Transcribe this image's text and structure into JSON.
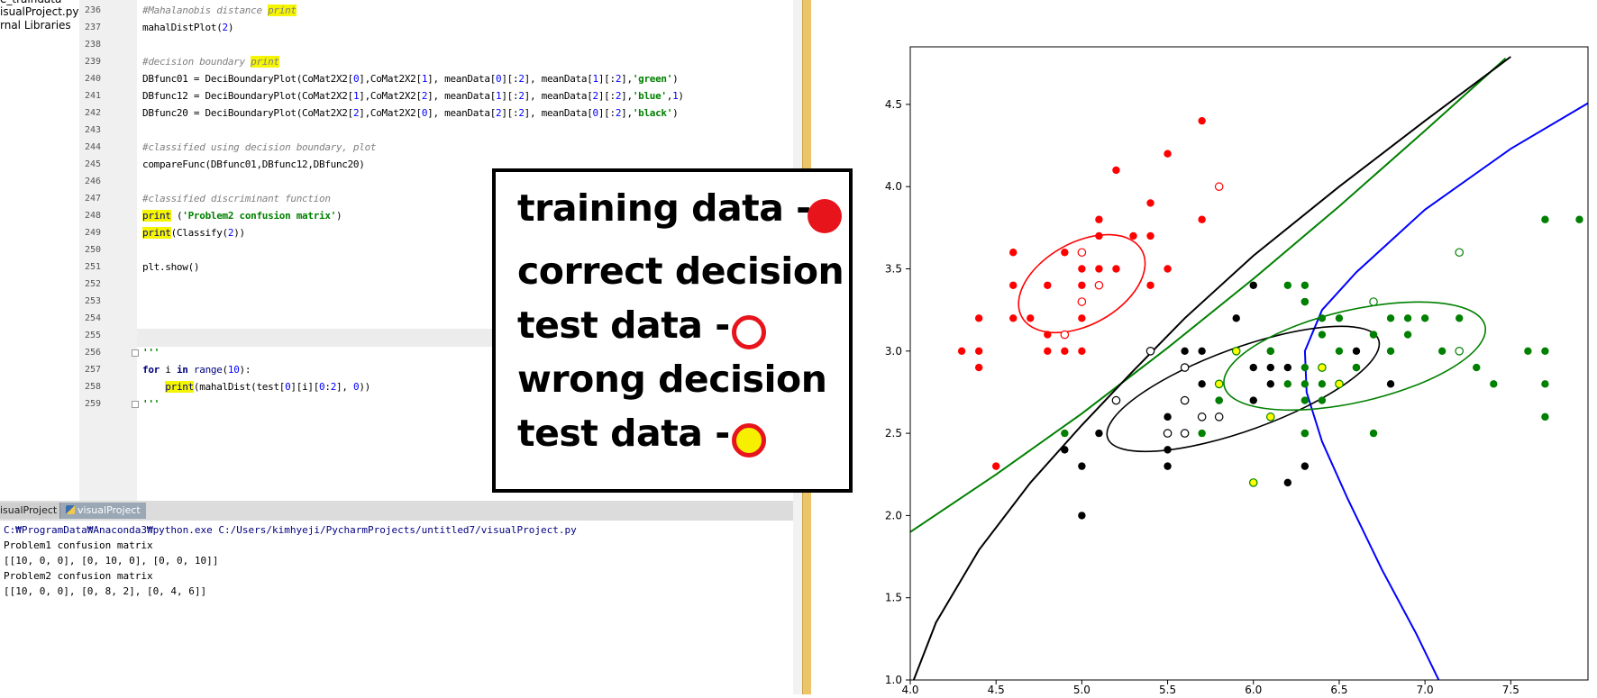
{
  "project_panel": {
    "items": [
      "e_traindata",
      "isualProject.py",
      "rnal Libraries"
    ]
  },
  "editor": {
    "lines": [
      {
        "n": "236",
        "html": "<span class='cm'>#Mahalanobis distance <span class='hl'>print</span></span>"
      },
      {
        "n": "237",
        "html": "mahalDistPlot(<span class='num'>2</span>)"
      },
      {
        "n": "238",
        "html": ""
      },
      {
        "n": "239",
        "html": "<span class='cm'>#decision boundary <span class='hl'>print</span></span>"
      },
      {
        "n": "240",
        "html": "DBfunc01 = DeciBoundaryPlot(CoMat2X2[<span class='num'>0</span>],CoMat2X2[<span class='num'>1</span>], meanData[<span class='num'>0</span>][:<span class='num'>2</span>], meanData[<span class='num'>1</span>][:<span class='num'>2</span>],<span class='str'>'green'</span>)"
      },
      {
        "n": "241",
        "html": "DBfunc12 = DeciBoundaryPlot(CoMat2X2[<span class='num'>1</span>],CoMat2X2[<span class='num'>2</span>], meanData[<span class='num'>1</span>][:<span class='num'>2</span>], meanData[<span class='num'>2</span>][:<span class='num'>2</span>],<span class='str'>'blue'</span>,<span class='num'>1</span>)"
      },
      {
        "n": "242",
        "html": "DBfunc20 = DeciBoundaryPlot(CoMat2X2[<span class='num'>2</span>],CoMat2X2[<span class='num'>0</span>], meanData[<span class='num'>2</span>][:<span class='num'>2</span>], meanData[<span class='num'>0</span>][:<span class='num'>2</span>],<span class='str'>'black'</span>)"
      },
      {
        "n": "243",
        "html": ""
      },
      {
        "n": "244",
        "html": "<span class='cm'>#classified using decision boundary, plot</span>"
      },
      {
        "n": "245",
        "html": "compareFunc(DBfunc01,DBfunc12,DBfunc20)"
      },
      {
        "n": "246",
        "html": ""
      },
      {
        "n": "247",
        "html": "<span class='cm'>#classified discriminant function</span>"
      },
      {
        "n": "248",
        "html": "<span class='hl bi'>print</span> (<span class='str'>'Problem2 confusion matrix'</span>)"
      },
      {
        "n": "249",
        "html": "<span class='hl bi'>print</span>(Classify(<span class='num'>2</span>))"
      },
      {
        "n": "250",
        "html": ""
      },
      {
        "n": "251",
        "html": "plt.show()"
      },
      {
        "n": "252",
        "html": ""
      },
      {
        "n": "253",
        "html": ""
      },
      {
        "n": "254",
        "html": ""
      },
      {
        "n": "255",
        "html": ""
      },
      {
        "n": "256",
        "html": "<span class='str'>'''</span>"
      },
      {
        "n": "257",
        "html": "<span class='kw'>for</span> i <span class='kw'>in</span> <span class='bi'>range</span>(<span class='num'>10</span>):"
      },
      {
        "n": "258",
        "html": "    <span class='hl bi'>print</span>(mahalDist(test[<span class='num'>0</span>][i][<span class='num'>0</span>:<span class='num'>2</span>], <span class='num'>0</span>))"
      },
      {
        "n": "259",
        "html": "<span class='str'>'''</span>"
      }
    ]
  },
  "run_tabs": {
    "tab_a": "isualProject",
    "tab_b": "visualProject"
  },
  "console": {
    "lines": [
      "C:₩ProgramData₩Anaconda3₩python.exe C:/Users/kimhyeji/PycharmProjects/untitled7/visualProject.py",
      "Problem1 confusion matrix",
      "[[10, 0, 0], [0, 10, 0], [0, 0, 10]]",
      "Problem2 confusion matrix",
      "[[10, 0, 0], [0, 8, 2], [0, 4, 6]]"
    ],
    "path_color": "#000080"
  },
  "legend": {
    "line1": "training data -",
    "line2": "correct decision",
    "line3": "test data -",
    "line4": "wrong decision",
    "line5": "test data -"
  },
  "chart_data": {
    "type": "scatter",
    "xlim": [
      4.0,
      7.95
    ],
    "ylim": [
      1.0,
      4.85
    ],
    "xticks": [
      4.0,
      4.5,
      5.0,
      5.5,
      6.0,
      6.5,
      7.0,
      7.5
    ],
    "yticks": [
      1.0,
      1.5,
      2.0,
      2.5,
      3.0,
      3.5,
      4.0,
      4.5
    ],
    "grid": false,
    "colors": {
      "setosa": "#ff0000",
      "versicolor": "#000000",
      "virginica": "#008000",
      "wrong": "#ffff00",
      "boundary_blue": "#0000ff"
    },
    "series": [
      {
        "kind": "train",
        "color": "#ff0000",
        "points": [
          [
            5.7,
            4.4
          ],
          [
            5.5,
            4.2
          ],
          [
            5.2,
            4.1
          ],
          [
            5.4,
            3.9
          ],
          [
            5.7,
            3.8
          ],
          [
            5.1,
            3.8
          ],
          [
            5.0,
            3.6
          ],
          [
            4.6,
            3.6
          ],
          [
            5.1,
            3.7
          ],
          [
            5.4,
            3.7
          ],
          [
            5.3,
            3.7
          ],
          [
            4.8,
            3.4
          ],
          [
            5.1,
            3.5
          ],
          [
            5.0,
            3.5
          ],
          [
            5.2,
            3.5
          ],
          [
            5.4,
            3.4
          ],
          [
            5.1,
            3.4
          ],
          [
            5.0,
            3.4
          ],
          [
            4.6,
            3.4
          ],
          [
            4.9,
            3.6
          ],
          [
            4.4,
            3.2
          ],
          [
            4.6,
            3.2
          ],
          [
            4.7,
            3.2
          ],
          [
            4.8,
            3.1
          ],
          [
            4.9,
            3.1
          ],
          [
            5.0,
            3.2
          ],
          [
            4.3,
            3.0
          ],
          [
            4.4,
            3.0
          ],
          [
            4.8,
            3.0
          ],
          [
            4.9,
            3.0
          ],
          [
            5.0,
            3.0
          ],
          [
            4.4,
            2.9
          ],
          [
            4.5,
            2.3
          ],
          [
            5.5,
            3.5
          ]
        ]
      },
      {
        "kind": "test",
        "color": "#ff0000",
        "points": [
          [
            5.8,
            4.0
          ],
          [
            5.0,
            3.6
          ],
          [
            5.1,
            3.4
          ],
          [
            5.0,
            3.3
          ],
          [
            4.9,
            3.1
          ]
        ]
      },
      {
        "kind": "train",
        "color": "#000000",
        "points": [
          [
            6.0,
            3.4
          ],
          [
            6.3,
            3.3
          ],
          [
            5.9,
            3.2
          ],
          [
            6.1,
            3.0
          ],
          [
            6.6,
            3.0
          ],
          [
            5.6,
            3.0
          ],
          [
            5.7,
            3.0
          ],
          [
            5.8,
            2.8
          ],
          [
            6.1,
            2.8
          ],
          [
            6.2,
            2.9
          ],
          [
            5.7,
            2.8
          ],
          [
            6.0,
            2.9
          ],
          [
            6.1,
            2.9
          ],
          [
            6.4,
            2.9
          ],
          [
            6.6,
            2.9
          ],
          [
            6.8,
            2.8
          ],
          [
            5.8,
            2.7
          ],
          [
            6.0,
            2.7
          ],
          [
            5.6,
            2.7
          ],
          [
            5.7,
            2.6
          ],
          [
            5.5,
            2.6
          ],
          [
            5.5,
            2.4
          ],
          [
            5.6,
            2.5
          ],
          [
            5.5,
            2.3
          ],
          [
            6.3,
            2.3
          ],
          [
            6.2,
            2.2
          ],
          [
            5.1,
            2.5
          ],
          [
            4.9,
            2.4
          ],
          [
            5.0,
            2.3
          ],
          [
            5.0,
            2.0
          ],
          [
            6.7,
            3.1
          ],
          [
            6.3,
            2.5
          ]
        ]
      },
      {
        "kind": "test",
        "color": "#000000",
        "points": [
          [
            5.4,
            3.0
          ],
          [
            5.2,
            2.7
          ],
          [
            5.6,
            2.9
          ],
          [
            5.6,
            2.7
          ],
          [
            5.7,
            2.6
          ],
          [
            5.5,
            2.5
          ],
          [
            5.6,
            2.5
          ],
          [
            5.8,
            2.6
          ]
        ]
      },
      {
        "kind": "train",
        "color": "#008000",
        "points": [
          [
            7.7,
            3.8
          ],
          [
            7.9,
            3.8
          ],
          [
            6.2,
            3.4
          ],
          [
            6.3,
            3.4
          ],
          [
            6.4,
            3.2
          ],
          [
            6.5,
            3.2
          ],
          [
            6.9,
            3.2
          ],
          [
            7.2,
            3.2
          ],
          [
            6.8,
            3.2
          ],
          [
            7.0,
            3.2
          ],
          [
            6.4,
            3.1
          ],
          [
            6.9,
            3.1
          ],
          [
            6.7,
            3.1
          ],
          [
            6.3,
            3.3
          ],
          [
            7.7,
            3.0
          ],
          [
            7.6,
            3.0
          ],
          [
            7.1,
            3.0
          ],
          [
            6.8,
            3.0
          ],
          [
            6.5,
            3.0
          ],
          [
            6.1,
            3.0
          ],
          [
            5.9,
            3.0
          ],
          [
            7.3,
            2.9
          ],
          [
            6.3,
            2.9
          ],
          [
            6.4,
            2.8
          ],
          [
            6.3,
            2.8
          ],
          [
            6.2,
            2.8
          ],
          [
            7.4,
            2.8
          ],
          [
            7.7,
            2.8
          ],
          [
            5.8,
            2.7
          ],
          [
            6.4,
            2.7
          ],
          [
            5.8,
            2.8
          ],
          [
            6.3,
            2.7
          ],
          [
            6.7,
            2.5
          ],
          [
            7.7,
            2.6
          ],
          [
            5.7,
            2.5
          ],
          [
            6.3,
            2.5
          ],
          [
            4.9,
            2.5
          ],
          [
            6.5,
            2.8
          ],
          [
            6.6,
            2.9
          ]
        ]
      },
      {
        "kind": "test",
        "color": "#008000",
        "points": [
          [
            7.2,
            3.6
          ],
          [
            6.7,
            3.3
          ],
          [
            7.2,
            3.0
          ]
        ]
      },
      {
        "kind": "wrong",
        "color": "#ffff00",
        "points": [
          [
            5.9,
            3.0
          ],
          [
            6.4,
            2.9
          ],
          [
            6.5,
            2.8
          ],
          [
            5.8,
            2.8
          ],
          [
            6.1,
            2.6
          ],
          [
            6.0,
            2.2
          ]
        ]
      }
    ],
    "ellipses": [
      {
        "color": "#ff0000",
        "center": [
          5.0,
          3.41
        ],
        "rx": 0.4,
        "ry": 0.25,
        "angle_deg": -29
      },
      {
        "color": "#000000",
        "center": [
          5.94,
          2.77
        ],
        "rx": 0.84,
        "ry": 0.25,
        "angle_deg": -20
      },
      {
        "color": "#008000",
        "center": [
          6.59,
          2.97
        ],
        "rx": 0.78,
        "ry": 0.28,
        "angle_deg": -13
      }
    ],
    "boundaries": [
      {
        "color": "#008000",
        "points": [
          [
            4.0,
            1.9
          ],
          [
            4.5,
            2.25
          ],
          [
            5.0,
            2.62
          ],
          [
            5.5,
            3.02
          ],
          [
            6.0,
            3.44
          ],
          [
            6.5,
            3.88
          ],
          [
            7.0,
            4.34
          ],
          [
            7.47,
            4.78
          ]
        ]
      },
      {
        "color": "#000000",
        "points": [
          [
            4.02,
            1.0
          ],
          [
            4.15,
            1.35
          ],
          [
            4.4,
            1.79
          ],
          [
            4.7,
            2.2
          ],
          [
            5.0,
            2.55
          ],
          [
            5.3,
            2.88
          ],
          [
            5.6,
            3.2
          ],
          [
            6.0,
            3.58
          ],
          [
            6.5,
            4.0
          ],
          [
            7.0,
            4.4
          ],
          [
            7.5,
            4.79
          ]
        ]
      },
      {
        "color": "#0000ff",
        "points": [
          [
            7.97,
            4.52
          ],
          [
            7.5,
            4.23
          ],
          [
            7.0,
            3.86
          ],
          [
            6.6,
            3.48
          ],
          [
            6.4,
            3.25
          ],
          [
            6.3,
            3.0
          ],
          [
            6.31,
            2.75
          ],
          [
            6.4,
            2.45
          ],
          [
            6.55,
            2.1
          ],
          [
            6.75,
            1.67
          ],
          [
            6.95,
            1.28
          ],
          [
            7.08,
            1.0
          ]
        ]
      }
    ]
  }
}
